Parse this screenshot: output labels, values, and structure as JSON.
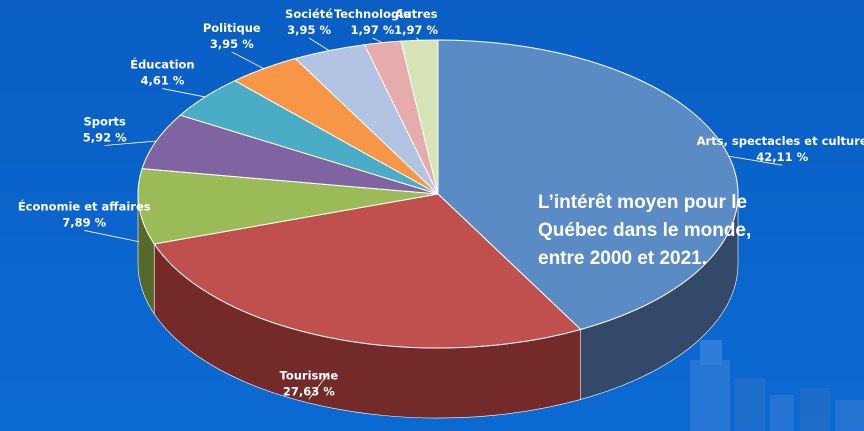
{
  "chart_data": {
    "type": "pie",
    "title": "",
    "categories": [
      "Arts, spectacles et culture",
      "Tourisme",
      "Économie et affaires",
      "Sports",
      "Éducation",
      "Politique",
      "Société",
      "Technologie",
      "Autres"
    ],
    "values": [
      42.11,
      27.63,
      7.89,
      5.92,
      4.61,
      3.95,
      3.95,
      1.97,
      1.97
    ],
    "labels": [
      "42,11 %",
      "27,63 %",
      "7,89 %",
      "5,92 %",
      "4,61 %",
      "3,95 %",
      "3,95 %",
      "1,97 %",
      "1,97 %"
    ],
    "colors": [
      "#5b8bc4",
      "#c0504d",
      "#9bbb59",
      "#8064a2",
      "#4bacc6",
      "#f79646",
      "#b3c3e3",
      "#e6acac",
      "#d7e4b5"
    ],
    "side_colors": [
      "#34496a",
      "#732a29",
      "#56692c",
      "#473859",
      "#2a6474",
      "#8a5324",
      "#6a7391",
      "#8a6767",
      "#7d8766"
    ],
    "annotation": [
      "L’intérêt moyen pour le",
      "Québec dans le monde,",
      "entre 2000 et 2021."
    ],
    "view": "3d-perspective"
  }
}
